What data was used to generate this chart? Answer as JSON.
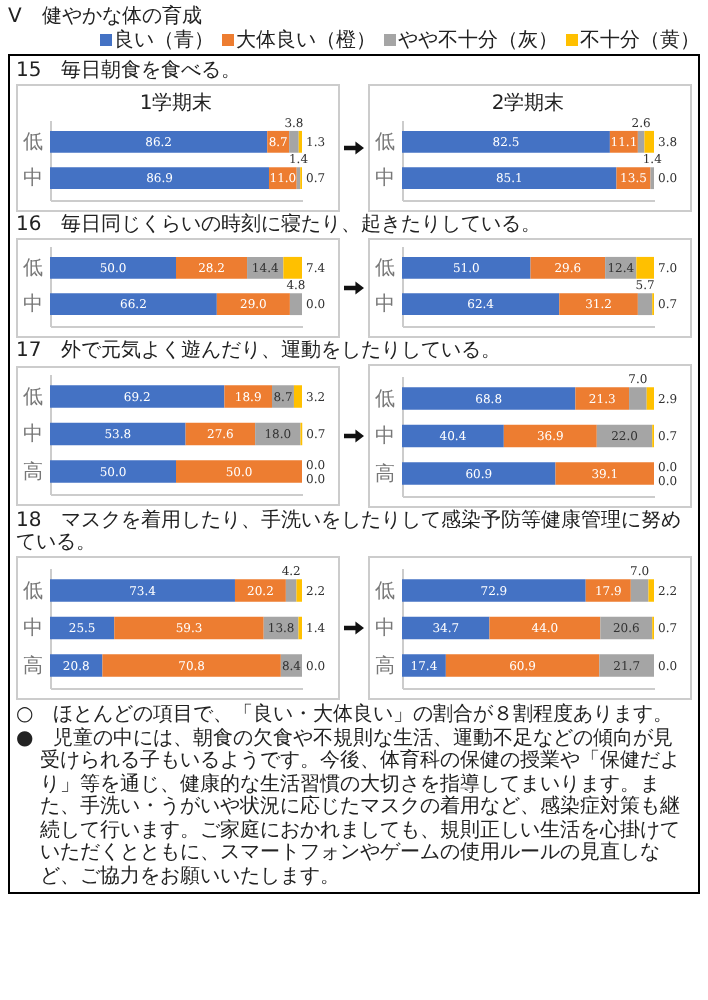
{
  "chart_data": [
    {
      "type": "bar",
      "orientation": "horizontal",
      "stacked": true,
      "tick_labels": "y",
      "xlim": [
        0,
        100
      ],
      "legend": "top",
      "title": "15　毎日朝食を食べる。",
      "subtitle": "1学期末",
      "annotations": [
        "V　健やかな体の育成"
      ],
      "categories": [
        "低",
        "中"
      ],
      "series": [
        {
          "name": "良い（青）",
          "color": "#4472c4",
          "values": [
            86.2,
            86.9
          ],
          "value_labels": [
            "86.2",
            "86.9"
          ]
        },
        {
          "name": "大体良い（橙）",
          "color": "#ed7d31",
          "values": [
            8.7,
            11.0
          ],
          "value_labels": [
            "8.7",
            "11.0"
          ]
        },
        {
          "name": "やや不十分（灰）",
          "color": "#a5a5a5",
          "values": [
            3.8,
            1.4
          ],
          "value_labels": [
            "3.8",
            "1.4"
          ]
        },
        {
          "name": "不十分（黄）",
          "color": "#ffc000",
          "values": [
            1.3,
            0.7
          ],
          "value_labels": [
            "1.3",
            "0.7"
          ]
        }
      ]
    },
    {
      "type": "bar",
      "orientation": "horizontal",
      "stacked": true,
      "tick_labels": "y",
      "xlim": [
        0,
        100
      ],
      "subtitle": "2学期末",
      "categories": [
        "低",
        "中"
      ],
      "series": [
        {
          "color": "#4472c4",
          "values": [
            82.5,
            85.1
          ],
          "value_labels": [
            "82.5",
            "85.1"
          ]
        },
        {
          "color": "#ed7d31",
          "values": [
            11.1,
            13.5
          ],
          "value_labels": [
            "11.1",
            "13.5"
          ]
        },
        {
          "color": "#a5a5a5",
          "values": [
            2.6,
            1.4
          ],
          "value_labels": [
            "2.6",
            "1.4"
          ]
        },
        {
          "color": "#ffc000",
          "values": [
            3.8,
            0.0
          ],
          "value_labels": [
            "3.8",
            "0.0"
          ]
        }
      ]
    },
    {
      "type": "bar",
      "orientation": "horizontal",
      "stacked": true,
      "tick_labels": "y",
      "xlim": [
        0,
        100
      ],
      "title": "16　毎日同じくらいの時刻に寝たり、起きたりしている。",
      "categories": [
        "低",
        "中"
      ],
      "series": [
        {
          "color": "#4472c4",
          "values": [
            50.0,
            66.2
          ],
          "value_labels": [
            "50.0",
            "66.2"
          ]
        },
        {
          "color": "#ed7d31",
          "values": [
            28.2,
            29.0
          ],
          "value_labels": [
            "28.2",
            "29.0"
          ]
        },
        {
          "color": "#a5a5a5",
          "values": [
            14.4,
            4.8
          ],
          "value_labels": [
            "14.4",
            "4.8"
          ]
        },
        {
          "color": "#ffc000",
          "values": [
            7.4,
            0.0
          ],
          "value_labels": [
            "7.4",
            "0.0"
          ]
        }
      ]
    },
    {
      "type": "bar",
      "orientation": "horizontal",
      "stacked": true,
      "tick_labels": "y",
      "xlim": [
        0,
        100
      ],
      "categories": [
        "低",
        "中"
      ],
      "series": [
        {
          "color": "#4472c4",
          "values": [
            51.0,
            62.4
          ],
          "value_labels": [
            "51.0",
            "62.4"
          ]
        },
        {
          "color": "#ed7d31",
          "values": [
            29.6,
            31.2
          ],
          "value_labels": [
            "29.6",
            "31.2"
          ]
        },
        {
          "color": "#a5a5a5",
          "values": [
            12.4,
            5.7
          ],
          "value_labels": [
            "12.4",
            "5.7"
          ]
        },
        {
          "color": "#ffc000",
          "values": [
            7.0,
            0.7
          ],
          "value_labels": [
            "7.0",
            "0.7"
          ]
        }
      ]
    },
    {
      "type": "bar",
      "orientation": "horizontal",
      "stacked": true,
      "tick_labels": "y",
      "xlim": [
        0,
        100
      ],
      "title": "17　外で元気よく遊んだり、運動をしたりしている。",
      "categories": [
        "低",
        "中",
        "高"
      ],
      "series": [
        {
          "color": "#4472c4",
          "values": [
            69.2,
            53.8,
            50.0
          ],
          "value_labels": [
            "69.2",
            "53.8",
            "50.0"
          ]
        },
        {
          "color": "#ed7d31",
          "values": [
            18.9,
            27.6,
            50.0
          ],
          "value_labels": [
            "18.9",
            "27.6",
            "50.0"
          ]
        },
        {
          "color": "#a5a5a5",
          "values": [
            8.7,
            18.0,
            0.0
          ],
          "value_labels": [
            "8.7",
            "18.0",
            "0.0"
          ]
        },
        {
          "color": "#ffc000",
          "values": [
            3.2,
            0.7,
            0.0
          ],
          "value_labels": [
            "3.2",
            "0.7",
            "0.0"
          ]
        }
      ]
    },
    {
      "type": "bar",
      "orientation": "horizontal",
      "stacked": true,
      "tick_labels": "y",
      "xlim": [
        0,
        100
      ],
      "categories": [
        "低",
        "中",
        "高"
      ],
      "series": [
        {
          "color": "#4472c4",
          "values": [
            68.8,
            40.4,
            60.9
          ],
          "value_labels": [
            "68.8",
            "40.4",
            "60.9"
          ]
        },
        {
          "color": "#ed7d31",
          "values": [
            21.3,
            36.9,
            39.1
          ],
          "value_labels": [
            "21.3",
            "36.9",
            "39.1"
          ]
        },
        {
          "color": "#a5a5a5",
          "values": [
            7.0,
            22.0,
            0.0
          ],
          "value_labels": [
            "7.0",
            "22.0",
            "0.0"
          ]
        },
        {
          "color": "#ffc000",
          "values": [
            2.9,
            0.7,
            0.0
          ],
          "value_labels": [
            "2.9",
            "0.7",
            "0.0"
          ]
        }
      ]
    },
    {
      "type": "bar",
      "orientation": "horizontal",
      "stacked": true,
      "tick_labels": "y",
      "xlim": [
        0,
        100
      ],
      "title": "18　マスクを着用したり、手洗いをしたりして感染予防等健康管理に努めている。",
      "categories": [
        "低",
        "中",
        "高"
      ],
      "series": [
        {
          "color": "#4472c4",
          "values": [
            73.4,
            25.5,
            20.8
          ],
          "value_labels": [
            "73.4",
            "25.5",
            "20.8"
          ]
        },
        {
          "color": "#ed7d31",
          "values": [
            20.2,
            59.3,
            70.8
          ],
          "value_labels": [
            "20.2",
            "59.3",
            "70.8"
          ]
        },
        {
          "color": "#a5a5a5",
          "values": [
            4.2,
            13.8,
            8.4
          ],
          "value_labels": [
            "4.2",
            "13.8",
            "8.4"
          ]
        },
        {
          "color": "#ffc000",
          "values": [
            2.2,
            1.4,
            0.0
          ],
          "value_labels": [
            "2.2",
            "1.4",
            "0.0"
          ]
        }
      ]
    },
    {
      "type": "bar",
      "orientation": "horizontal",
      "stacked": true,
      "tick_labels": "y",
      "xlim": [
        0,
        100
      ],
      "categories": [
        "低",
        "中",
        "高"
      ],
      "annotations": [
        "○　ほとんどの項目で、「良い・大体良い」の割合が８割程度あります。",
        "●　児童の中には、朝食の欠食や不規則な生活、運動不足などの傾向が見受けられる子もいるようです。今後、体育科の保健の授業や「保健だより」等を通じ、健康的な生活習慣の大切さを指導してまいります。また、手洗い・うがいや状況に応じたマスクの着用など、感染症対策も継続して行います。ご家庭におかれましても、規則正しい生活を心掛けていただくとともに、スマートフォンやゲームの使用ルールの見直しなど、ご協力をお願いいたします。"
      ],
      "series": [
        {
          "color": "#4472c4",
          "values": [
            72.9,
            34.7,
            17.4
          ],
          "value_labels": [
            "72.9",
            "34.7",
            "17.4"
          ]
        },
        {
          "color": "#ed7d31",
          "values": [
            17.9,
            44.0,
            60.9
          ],
          "value_labels": [
            "17.9",
            "44.0",
            "60.9"
          ]
        },
        {
          "color": "#a5a5a5",
          "values": [
            7.0,
            20.6,
            21.7
          ],
          "value_labels": [
            "7.0",
            "20.6",
            "21.7"
          ]
        },
        {
          "color": "#ffc000",
          "values": [
            2.2,
            0.7,
            0.0
          ],
          "value_labels": [
            "2.2",
            "0.7",
            "0.0"
          ]
        }
      ]
    }
  ]
}
